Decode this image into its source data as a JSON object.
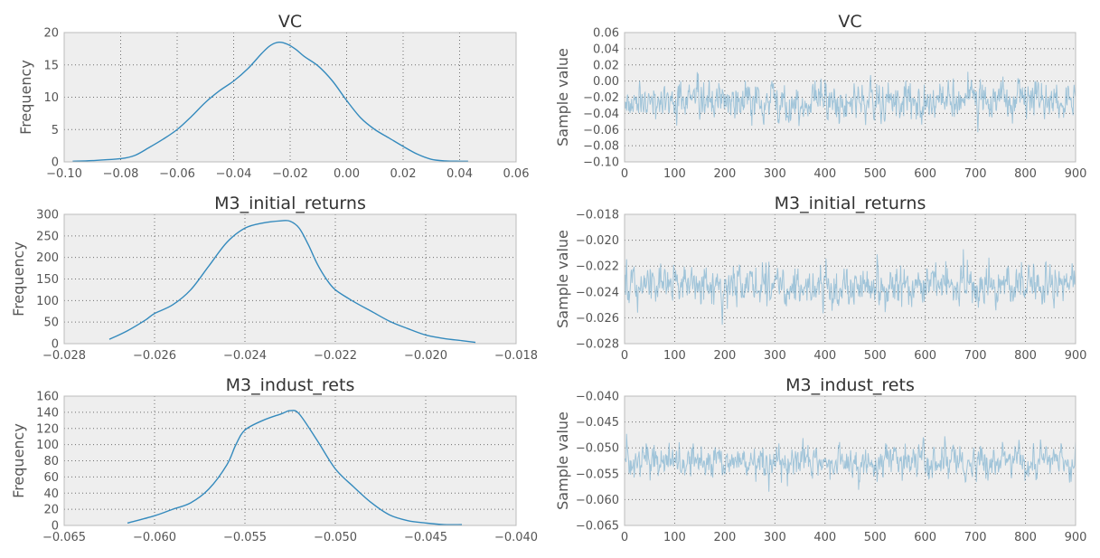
{
  "chart_data": [
    {
      "type": "line",
      "subtype": "kde",
      "title": "VC",
      "xlabel": "",
      "ylabel": "Frequency",
      "xlim": [
        -0.1,
        0.06
      ],
      "ylim": [
        0,
        20
      ],
      "xticks": [
        "−0.10",
        "−0.08",
        "−0.06",
        "−0.04",
        "−0.02",
        "0.00",
        "0.02",
        "0.04",
        "0.06"
      ],
      "yticks": [
        "0",
        "5",
        "10",
        "15",
        "20"
      ],
      "grid": true,
      "x": [
        -0.097,
        -0.09,
        -0.08,
        -0.075,
        -0.07,
        -0.065,
        -0.06,
        -0.055,
        -0.05,
        -0.045,
        -0.04,
        -0.035,
        -0.03,
        -0.027,
        -0.024,
        -0.021,
        -0.018,
        -0.015,
        -0.01,
        -0.005,
        0.0,
        0.005,
        0.01,
        0.015,
        0.02,
        0.025,
        0.03,
        0.035,
        0.04,
        0.043
      ],
      "y": [
        0.1,
        0.2,
        0.5,
        1.0,
        2.2,
        3.5,
        5.0,
        7.0,
        9.2,
        11.0,
        12.5,
        14.4,
        16.8,
        18.0,
        18.5,
        18.2,
        17.4,
        16.3,
        14.8,
        12.5,
        9.5,
        6.8,
        5.0,
        3.7,
        2.4,
        1.2,
        0.4,
        0.15,
        0.1,
        0.1
      ]
    },
    {
      "type": "line",
      "subtype": "trace",
      "title": "VC",
      "xlabel": "",
      "ylabel": "Sample value",
      "xlim": [
        0,
        900
      ],
      "ylim": [
        -0.1,
        0.06
      ],
      "xticks": [
        "0",
        "100",
        "200",
        "300",
        "400",
        "500",
        "600",
        "700",
        "800",
        "900"
      ],
      "yticks": [
        "−0.10",
        "−0.08",
        "−0.06",
        "−0.04",
        "−0.02",
        "0.00",
        "0.02",
        "0.04",
        "0.06"
      ],
      "grid": true,
      "n_samples": 900,
      "center": -0.025,
      "spread": 0.02,
      "observed_min": -0.097,
      "observed_max": 0.04
    },
    {
      "type": "line",
      "subtype": "kde",
      "title": "M3_initial_returns",
      "xlabel": "",
      "ylabel": "Frequency",
      "xlim": [
        -0.028,
        -0.018
      ],
      "ylim": [
        0,
        300
      ],
      "xticks": [
        "−0.028",
        "−0.026",
        "−0.024",
        "−0.022",
        "−0.020",
        "−0.018"
      ],
      "yticks": [
        "0",
        "50",
        "100",
        "150",
        "200",
        "250",
        "300"
      ],
      "grid": true,
      "x": [
        -0.027,
        -0.0266,
        -0.0262,
        -0.026,
        -0.0256,
        -0.0252,
        -0.0248,
        -0.0244,
        -0.024,
        -0.0236,
        -0.0232,
        -0.023,
        -0.0228,
        -0.0226,
        -0.0224,
        -0.0222,
        -0.022,
        -0.0216,
        -0.0212,
        -0.0208,
        -0.0204,
        -0.02,
        -0.0196,
        -0.0192,
        -0.0189
      ],
      "y": [
        10,
        30,
        55,
        70,
        90,
        125,
        180,
        235,
        268,
        280,
        285,
        284,
        268,
        230,
        185,
        150,
        125,
        98,
        75,
        52,
        35,
        20,
        12,
        7,
        3
      ]
    },
    {
      "type": "line",
      "subtype": "trace",
      "title": "M3_initial_returns",
      "xlabel": "",
      "ylabel": "Sample value",
      "xlim": [
        0,
        900
      ],
      "ylim": [
        -0.028,
        -0.018
      ],
      "xticks": [
        "0",
        "100",
        "200",
        "300",
        "400",
        "500",
        "600",
        "700",
        "800",
        "900"
      ],
      "yticks": [
        "−0.028",
        "−0.026",
        "−0.024",
        "−0.022",
        "−0.020",
        "−0.018"
      ],
      "grid": true,
      "n_samples": 900,
      "center": -0.0235,
      "spread": 0.0013,
      "observed_min": -0.027,
      "observed_max": -0.019
    },
    {
      "type": "line",
      "subtype": "kde",
      "title": "M3_indust_rets",
      "xlabel": "",
      "ylabel": "Frequency",
      "xlim": [
        -0.065,
        -0.04
      ],
      "ylim": [
        0,
        160
      ],
      "xticks": [
        "−0.065",
        "−0.060",
        "−0.055",
        "−0.050",
        "−0.045",
        "−0.040"
      ],
      "yticks": [
        "0",
        "20",
        "40",
        "60",
        "80",
        "100",
        "120",
        "140",
        "160"
      ],
      "grid": true,
      "x": [
        -0.0615,
        -0.06,
        -0.059,
        -0.058,
        -0.057,
        -0.056,
        -0.0555,
        -0.055,
        -0.054,
        -0.053,
        -0.0525,
        -0.052,
        -0.051,
        -0.05,
        -0.049,
        -0.048,
        -0.047,
        -0.046,
        -0.045,
        -0.044,
        -0.043
      ],
      "y": [
        3,
        12,
        20,
        28,
        45,
        75,
        100,
        118,
        130,
        138,
        142,
        138,
        105,
        70,
        48,
        28,
        13,
        6,
        3,
        1,
        1
      ]
    },
    {
      "type": "line",
      "subtype": "trace",
      "title": "M3_indust_rets",
      "xlabel": "",
      "ylabel": "Sample value",
      "xlim": [
        0,
        900
      ],
      "ylim": [
        -0.065,
        -0.04
      ],
      "xticks": [
        "0",
        "100",
        "200",
        "300",
        "400",
        "500",
        "600",
        "700",
        "800",
        "900"
      ],
      "yticks": [
        "−0.065",
        "−0.060",
        "−0.055",
        "−0.050",
        "−0.045",
        "−0.040"
      ],
      "grid": true,
      "n_samples": 900,
      "center": -0.0527,
      "spread": 0.0026,
      "observed_min": -0.0615,
      "observed_max": -0.043
    }
  ]
}
